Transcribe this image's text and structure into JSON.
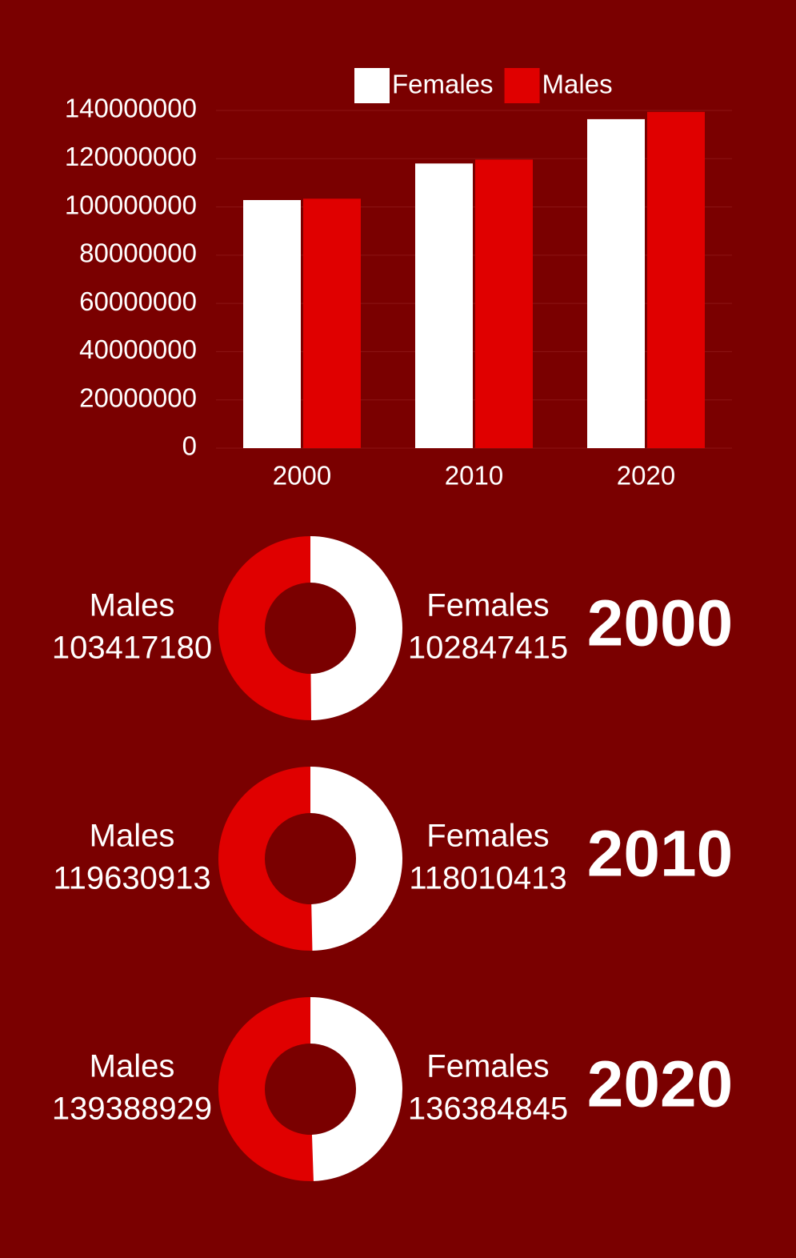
{
  "chart_data": [
    {
      "type": "bar",
      "categories": [
        "2000",
        "2010",
        "2020"
      ],
      "series": [
        {
          "name": "Females",
          "color": "#ffffff",
          "values": [
            102847415,
            118010413,
            136384845
          ]
        },
        {
          "name": "Males",
          "color": "#e00000",
          "values": [
            103417180,
            119630913,
            139388929
          ]
        }
      ],
      "ylim": [
        0,
        140000000
      ],
      "yticks": [
        0,
        20000000,
        40000000,
        60000000,
        80000000,
        100000000,
        120000000,
        140000000
      ],
      "grid": true,
      "legend": "top"
    },
    {
      "type": "pie",
      "donut": true,
      "title": "2000",
      "categories": [
        "Males",
        "Females"
      ],
      "values": [
        103417180,
        102847415
      ],
      "colors": [
        "#e00000",
        "#ffffff"
      ]
    },
    {
      "type": "pie",
      "donut": true,
      "title": "2010",
      "categories": [
        "Males",
        "Females"
      ],
      "values": [
        119630913,
        118010413
      ],
      "colors": [
        "#e00000",
        "#ffffff"
      ]
    },
    {
      "type": "pie",
      "donut": true,
      "title": "2020",
      "categories": [
        "Males",
        "Females"
      ],
      "values": [
        139388929,
        136384845
      ],
      "colors": [
        "#e00000",
        "#ffffff"
      ]
    }
  ]
}
